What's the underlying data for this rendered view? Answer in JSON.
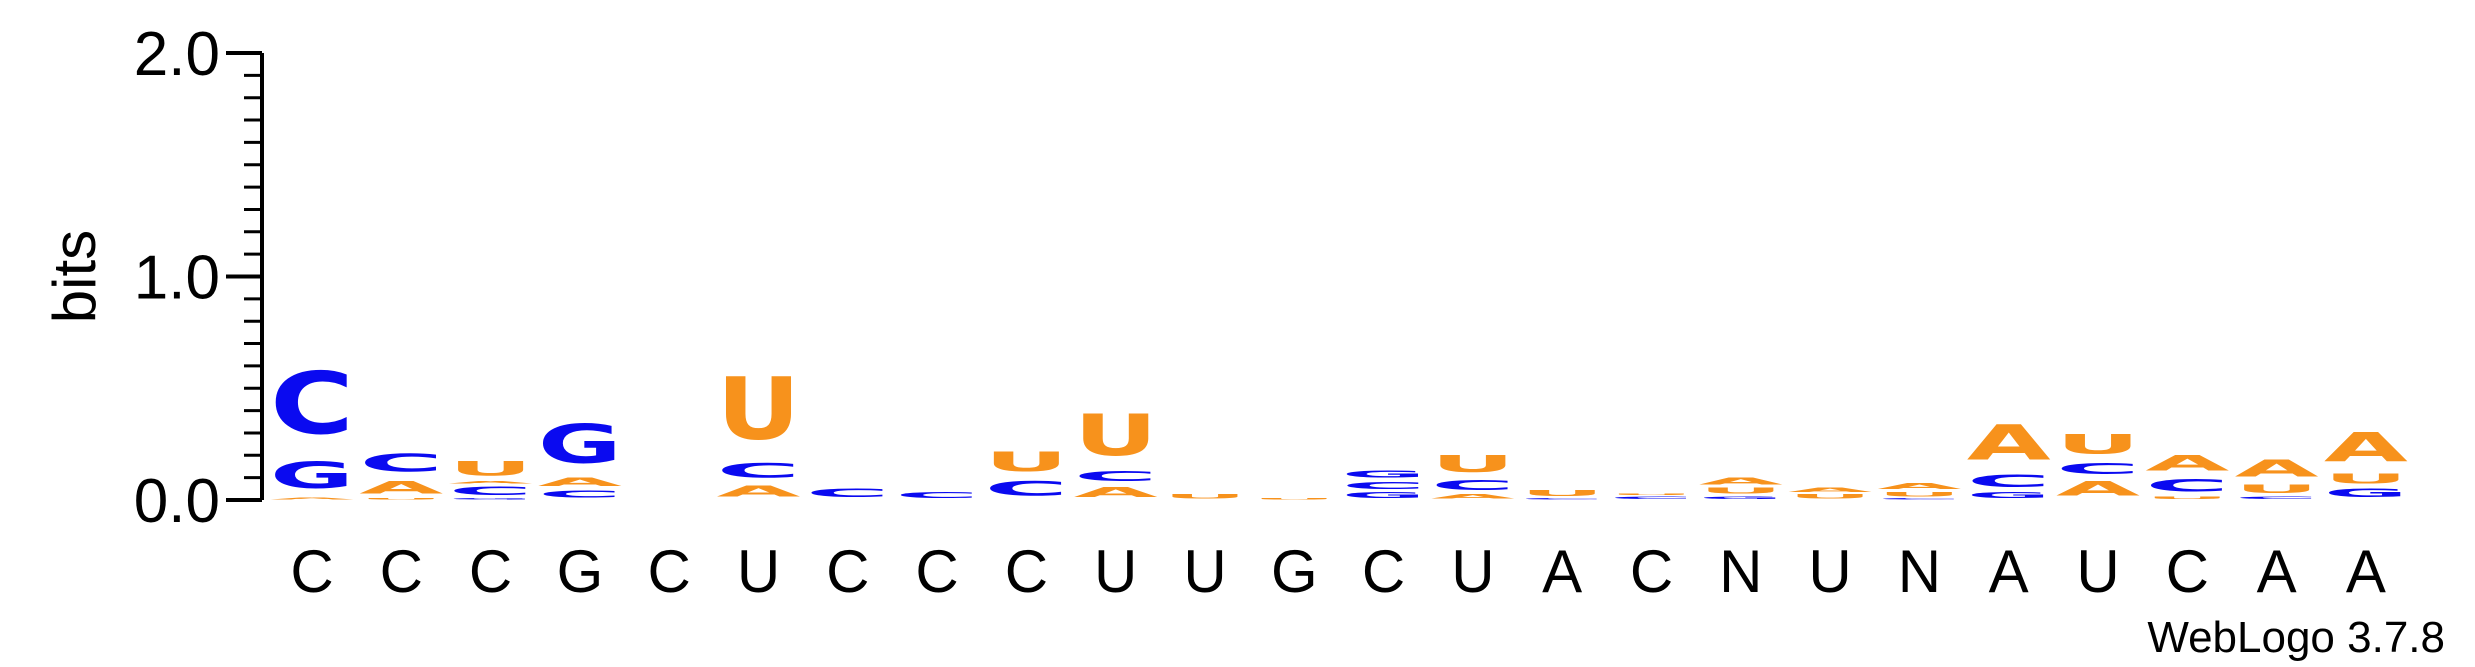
{
  "chart_data": {
    "type": "sequence-logo",
    "ylabel": "bits",
    "ylim": [
      0,
      2.0
    ],
    "yticks": [
      "0.0",
      "1.0",
      "2.0"
    ],
    "colors": {
      "A": "#f7921c",
      "U": "#f7921c",
      "C": "#0a0af0",
      "G": "#0a0af0"
    },
    "consensus": [
      "C",
      "C",
      "C",
      "G",
      "C",
      "U",
      "C",
      "C",
      "C",
      "U",
      "U",
      "G",
      "C",
      "U",
      "A",
      "C",
      "N",
      "U",
      "N",
      "A",
      "U",
      "C",
      "A",
      "A"
    ],
    "positions": [
      [
        {
          "l": "A",
          "h": 0.015
        },
        {
          "l": "G",
          "h": 0.19
        },
        {
          "l": "C",
          "h": 0.45
        }
      ],
      [
        {
          "l": "U",
          "h": 0.01
        },
        {
          "l": "A",
          "h": 0.09
        },
        {
          "l": "C",
          "h": 0.13
        }
      ],
      [
        {
          "l": "G",
          "h": 0.01
        },
        {
          "l": "C",
          "h": 0.06
        },
        {
          "l": "A",
          "h": 0.02
        },
        {
          "l": "U",
          "h": 0.1
        }
      ],
      [
        {
          "l": "C",
          "h": 0.05
        },
        {
          "l": "A",
          "h": 0.06
        },
        {
          "l": "G",
          "h": 0.28
        }
      ],
      [],
      [
        {
          "l": "A",
          "h": 0.08
        },
        {
          "l": "C",
          "h": 0.1
        },
        {
          "l": "U",
          "h": 0.45
        }
      ],
      [
        {
          "l": "C",
          "h": 0.06
        }
      ],
      [
        {
          "l": "C",
          "h": 0.04
        }
      ],
      [
        {
          "l": "C",
          "h": 0.1
        },
        {
          "l": "U",
          "h": 0.14
        }
      ],
      [
        {
          "l": "A",
          "h": 0.07
        },
        {
          "l": "C",
          "h": 0.07
        },
        {
          "l": "U",
          "h": 0.3
        }
      ],
      [
        {
          "l": "U",
          "h": 0.03
        }
      ],
      [
        {
          "l": "U",
          "h": 0.01
        }
      ],
      [
        {
          "l": "G",
          "h": 0.04
        },
        {
          "l": "C",
          "h": 0.05
        },
        {
          "l": "G",
          "h": 0.05
        }
      ],
      [
        {
          "l": "A",
          "h": 0.03
        },
        {
          "l": "C",
          "h": 0.07
        },
        {
          "l": "U",
          "h": 0.12
        }
      ],
      [
        {
          "l": "C",
          "h": 0.01
        },
        {
          "l": "U",
          "h": 0.04
        }
      ],
      [
        {
          "l": "C",
          "h": 0.02
        },
        {
          "l": "U",
          "h": 0.01
        }
      ],
      [
        {
          "l": "G",
          "h": 0.02
        },
        {
          "l": "U",
          "h": 0.04
        },
        {
          "l": "A",
          "h": 0.05
        }
      ],
      [
        {
          "l": "U",
          "h": 0.03
        },
        {
          "l": "A",
          "h": 0.03
        }
      ],
      [
        {
          "l": "C",
          "h": 0.01
        },
        {
          "l": "U",
          "h": 0.03
        },
        {
          "l": "A",
          "h": 0.04
        }
      ],
      [
        {
          "l": "G",
          "h": 0.04
        },
        {
          "l": "C",
          "h": 0.09
        },
        {
          "l": "A",
          "h": 0.25
        }
      ],
      [
        {
          "l": "A",
          "h": 0.1
        },
        {
          "l": "C",
          "h": 0.08
        },
        {
          "l": "U",
          "h": 0.14
        }
      ],
      [
        {
          "l": "U",
          "h": 0.02
        },
        {
          "l": "C",
          "h": 0.09
        },
        {
          "l": "A",
          "h": 0.11
        }
      ],
      [
        {
          "l": "C",
          "h": 0.02
        },
        {
          "l": "U",
          "h": 0.06
        },
        {
          "l": "A",
          "h": 0.12
        }
      ],
      [
        {
          "l": "G",
          "h": 0.06
        },
        {
          "l": "U",
          "h": 0.07
        },
        {
          "l": "A",
          "h": 0.21
        }
      ]
    ]
  },
  "credit": "WebLogo 3.7.8"
}
